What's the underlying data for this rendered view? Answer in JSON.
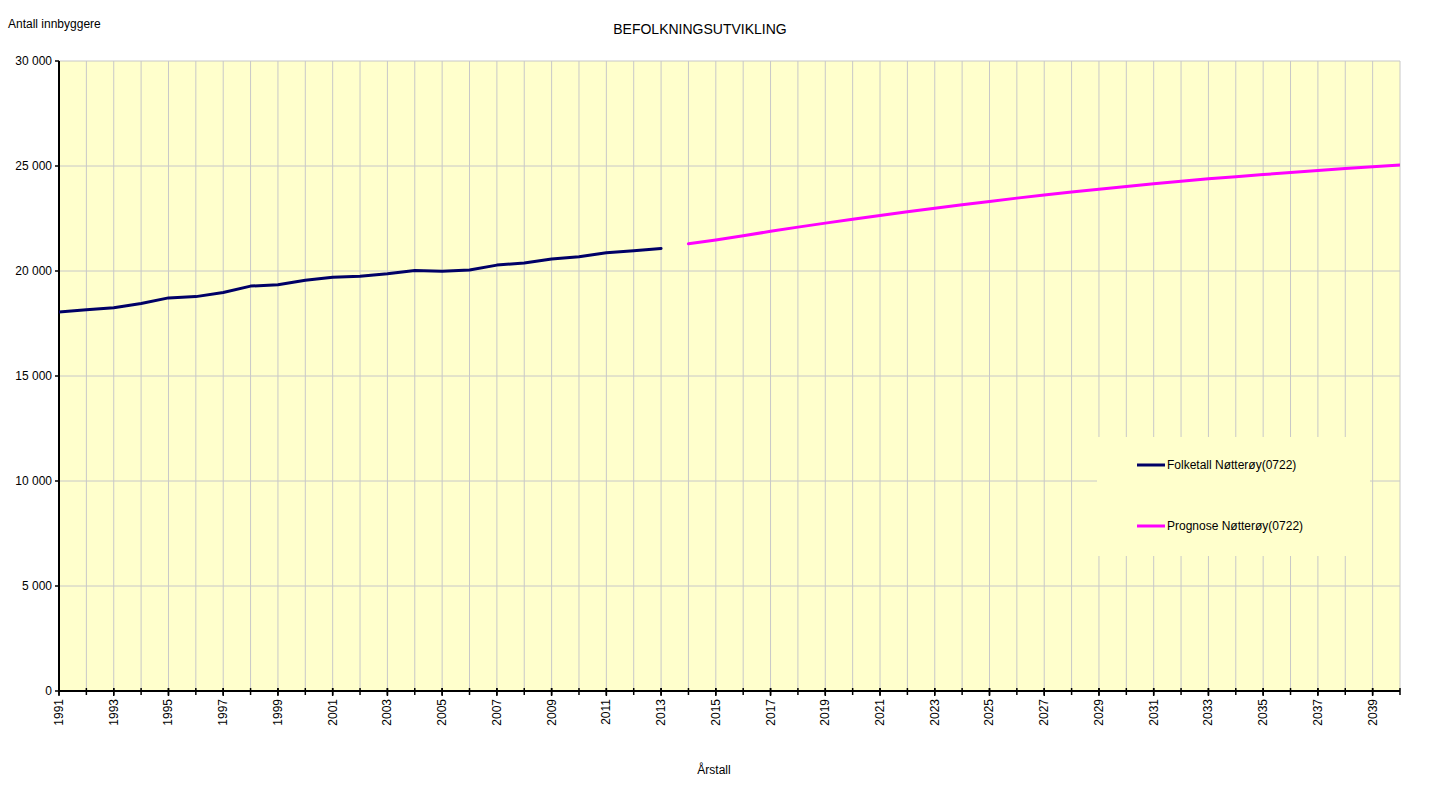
{
  "chart_data": {
    "type": "line",
    "title": "BEFOLKNINGSUTVIKLING",
    "y_label": "Antall innbyggere",
    "x_label": "Årstall",
    "x": [
      1991,
      1992,
      1993,
      1994,
      1995,
      1996,
      1997,
      1998,
      1999,
      2000,
      2001,
      2002,
      2003,
      2004,
      2005,
      2006,
      2007,
      2008,
      2009,
      2010,
      2011,
      2012,
      2013,
      2014,
      2015,
      2016,
      2017,
      2018,
      2019,
      2020,
      2021,
      2022,
      2023,
      2024,
      2025,
      2026,
      2027,
      2028,
      2029,
      2030,
      2031,
      2032,
      2033,
      2034,
      2035,
      2036,
      2037,
      2038,
      2039,
      2040
    ],
    "series": [
      {
        "name": "Folketall Nøtterøy(0722)",
        "color": "#000066",
        "values": [
          18050,
          18150,
          18250,
          18450,
          18720,
          18780,
          18980,
          19280,
          19350,
          19560,
          19700,
          19750,
          19870,
          20020,
          19990,
          20050,
          20280,
          20380,
          20570,
          20680,
          20870,
          20970,
          21070,
          null,
          null,
          null,
          null,
          null,
          null,
          null,
          null,
          null,
          null,
          null,
          null,
          null,
          null,
          null,
          null,
          null,
          null,
          null,
          null,
          null,
          null,
          null,
          null,
          null,
          null,
          null
        ]
      },
      {
        "name": "Prognose Nøtterøy(0722)",
        "color": "#ff00ff",
        "values": [
          null,
          null,
          null,
          null,
          null,
          null,
          null,
          null,
          null,
          null,
          null,
          null,
          null,
          null,
          null,
          null,
          null,
          null,
          null,
          null,
          null,
          null,
          null,
          21300,
          21480,
          21680,
          21890,
          22090,
          22280,
          22460,
          22640,
          22820,
          22990,
          23160,
          23310,
          23470,
          23620,
          23760,
          23890,
          24020,
          24150,
          24270,
          24390,
          24490,
          24590,
          24690,
          24790,
          24880,
          24970,
          25050
        ]
      }
    ],
    "xlim": [
      1991,
      2040
    ],
    "xticks": [
      1991,
      1993,
      1995,
      1997,
      1999,
      2001,
      2003,
      2005,
      2007,
      2009,
      2011,
      2013,
      2015,
      2017,
      2019,
      2021,
      2023,
      2025,
      2027,
      2029,
      2031,
      2033,
      2035,
      2037,
      2039
    ],
    "ylim": [
      0,
      30000
    ],
    "yticks": [
      0,
      {
        "value": 5000,
        "label": "5 000"
      },
      {
        "value": 10000,
        "label": "10 000"
      },
      {
        "value": 15000,
        "label": "15 000"
      },
      {
        "value": 20000,
        "label": "20 000"
      },
      {
        "value": 25000,
        "label": "25 000"
      },
      {
        "value": 30000,
        "label": "30 000"
      }
    ],
    "grid": true,
    "legend": "right"
  }
}
